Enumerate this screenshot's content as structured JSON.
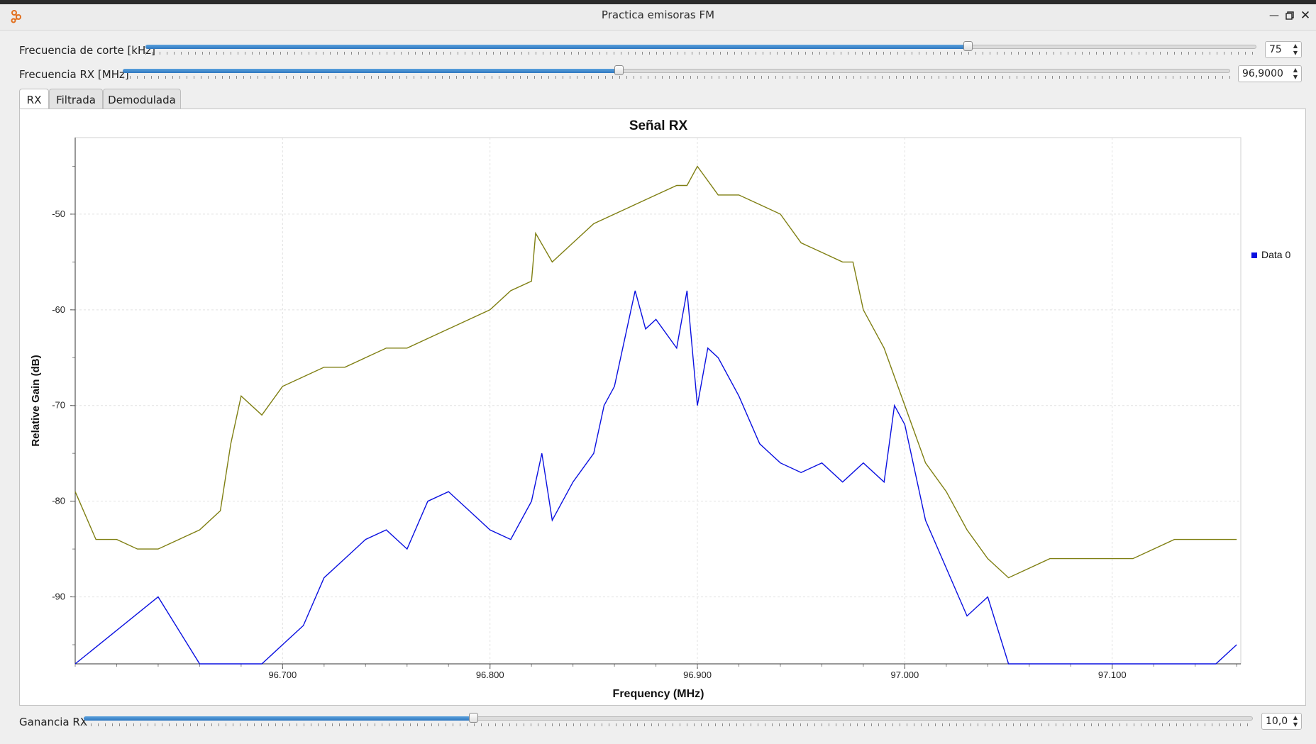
{
  "window": {
    "title": "Practica emisoras FM",
    "controls": [
      "minimize",
      "restore",
      "close"
    ]
  },
  "controls": {
    "cutoff": {
      "label": "Frecuencia de corte [kHz]",
      "value": "75",
      "level": 0.74
    },
    "rx_freq": {
      "label": "Frecuencia RX [MHz]",
      "value": "96,9000",
      "level": 0.448
    },
    "gain": {
      "label": "Ganancia RX",
      "value": "10,0",
      "level": 0.333
    }
  },
  "tabs": [
    {
      "label": "RX",
      "active": true
    },
    {
      "label": "Filtrada",
      "active": false
    },
    {
      "label": "Demodulada",
      "active": false
    }
  ],
  "chart_data": {
    "type": "line",
    "title": "Señal RX",
    "xlabel": "Frequency (MHz)",
    "ylabel": "Relative Gain (dB)",
    "xlim": [
      96.6,
      97.162
    ],
    "ylim": [
      -97,
      -42
    ],
    "xticks": [
      "96.700",
      "96.800",
      "96.900",
      "97.000",
      "97.100"
    ],
    "yticks": [
      "-50",
      "-60",
      "-70",
      "-80",
      "-90"
    ],
    "grid": true,
    "legend": {
      "position": "top-right",
      "entries": [
        "Data 0"
      ]
    },
    "series": [
      {
        "name": "Data 0",
        "color": "#0a10e0",
        "x": [
          96.6,
          96.64,
          96.66,
          96.69,
          96.7,
          96.71,
          96.72,
          96.73,
          96.74,
          96.75,
          96.76,
          96.77,
          96.78,
          96.79,
          96.8,
          96.81,
          96.82,
          96.825,
          96.83,
          96.84,
          96.85,
          96.855,
          96.86,
          96.865,
          96.87,
          96.875,
          96.88,
          96.89,
          96.895,
          96.9,
          96.905,
          96.91,
          96.92,
          96.93,
          96.94,
          96.95,
          96.96,
          96.97,
          96.98,
          96.99,
          96.995,
          97.0,
          97.01,
          97.02,
          97.03,
          97.04,
          97.05,
          97.1,
          97.15,
          97.16
        ],
        "y": [
          -97,
          -90,
          -97,
          -97,
          -95,
          -93,
          -88,
          -86,
          -84,
          -83,
          -85,
          -80,
          -79,
          -81,
          -83,
          -84,
          -80,
          -75,
          -82,
          -78,
          -75,
          -70,
          -68,
          -63,
          -58,
          -62,
          -61,
          -64,
          -58,
          -70,
          -64,
          -65,
          -69,
          -74,
          -76,
          -77,
          -76,
          -78,
          -76,
          -78,
          -70,
          -72,
          -82,
          -87,
          -92,
          -90,
          -97,
          -97,
          -97,
          -95
        ]
      },
      {
        "name": "",
        "color": "#7f7f12",
        "x": [
          96.6,
          96.61,
          96.62,
          96.63,
          96.64,
          96.65,
          96.66,
          96.67,
          96.675,
          96.68,
          96.69,
          96.7,
          96.71,
          96.72,
          96.73,
          96.74,
          96.75,
          96.76,
          96.77,
          96.78,
          96.79,
          96.8,
          96.81,
          96.82,
          96.822,
          96.83,
          96.84,
          96.85,
          96.86,
          96.87,
          96.88,
          96.89,
          96.895,
          96.9,
          96.91,
          96.92,
          96.93,
          96.94,
          96.95,
          96.96,
          96.97,
          96.975,
          96.98,
          96.99,
          97.0,
          97.01,
          97.02,
          97.03,
          97.04,
          97.05,
          97.06,
          97.07,
          97.08,
          97.09,
          97.1,
          97.11,
          97.12,
          97.13,
          97.14,
          97.15,
          97.16
        ],
        "y": [
          -79,
          -84,
          -84,
          -85,
          -85,
          -84,
          -83,
          -81,
          -74,
          -69,
          -71,
          -68,
          -67,
          -66,
          -66,
          -65,
          -64,
          -64,
          -63,
          -62,
          -61,
          -60,
          -58,
          -57,
          -52,
          -55,
          -53,
          -51,
          -50,
          -49,
          -48,
          -47,
          -47,
          -45,
          -48,
          -48,
          -49,
          -50,
          -53,
          -54,
          -55,
          -55,
          -60,
          -64,
          -70,
          -76,
          -79,
          -83,
          -86,
          -88,
          -87,
          -86,
          -86,
          -86,
          -86,
          -86,
          -85,
          -84,
          -84,
          -84,
          -84
        ]
      }
    ]
  }
}
